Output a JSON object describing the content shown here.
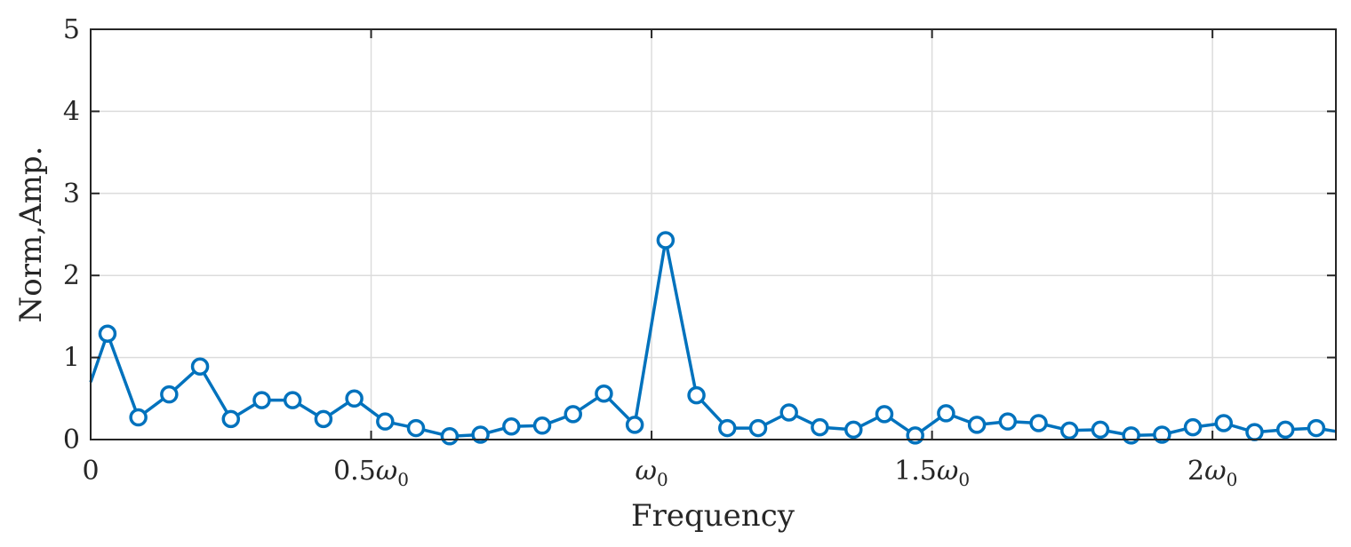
{
  "chart_data": {
    "type": "line",
    "xlabel": "Frequency",
    "ylabel": "Norm,Amp.",
    "xlim": [
      0,
      2.22
    ],
    "ylim": [
      0,
      5
    ],
    "x_ticks": [
      {
        "value": 0,
        "label": "0"
      },
      {
        "value": 0.5,
        "label": "0.5ω0"
      },
      {
        "value": 1.0,
        "label": "ω0"
      },
      {
        "value": 1.5,
        "label": "1.5ω0"
      },
      {
        "value": 2.0,
        "label": "2ω0"
      }
    ],
    "y_ticks": [
      0,
      1,
      2,
      3,
      4,
      5
    ],
    "grid": true,
    "color": "#0072bd",
    "series": [
      {
        "x": [
          0,
          0.03,
          0.085,
          0.14,
          0.195,
          0.25,
          0.305,
          0.36,
          0.415,
          0.47,
          0.525,
          0.58,
          0.64,
          0.695,
          0.75,
          0.805,
          0.86,
          0.915,
          0.97,
          1.025,
          1.08,
          1.135,
          1.19,
          1.245,
          1.3,
          1.36,
          1.415,
          1.47,
          1.525,
          1.58,
          1.635,
          1.69,
          1.745,
          1.8,
          1.855,
          1.91,
          1.965,
          2.02,
          2.075,
          2.13,
          2.185,
          2.22
        ],
        "values": [
          0.7,
          1.29,
          0.27,
          0.55,
          0.89,
          0.25,
          0.48,
          0.48,
          0.25,
          0.5,
          0.22,
          0.14,
          0.04,
          0.06,
          0.16,
          0.17,
          0.31,
          0.56,
          0.18,
          2.43,
          0.54,
          0.14,
          0.14,
          0.33,
          0.15,
          0.12,
          0.31,
          0.05,
          0.32,
          0.18,
          0.22,
          0.2,
          0.11,
          0.12,
          0.05,
          0.06,
          0.15,
          0.2,
          0.09,
          0.12,
          0.14,
          0.1
        ],
        "markers": [
          false,
          true,
          true,
          true,
          true,
          true,
          true,
          true,
          true,
          true,
          true,
          true,
          true,
          true,
          true,
          true,
          true,
          true,
          true,
          true,
          true,
          true,
          true,
          true,
          true,
          true,
          true,
          true,
          true,
          true,
          true,
          true,
          true,
          true,
          true,
          true,
          true,
          true,
          true,
          true,
          true,
          false
        ]
      }
    ]
  }
}
